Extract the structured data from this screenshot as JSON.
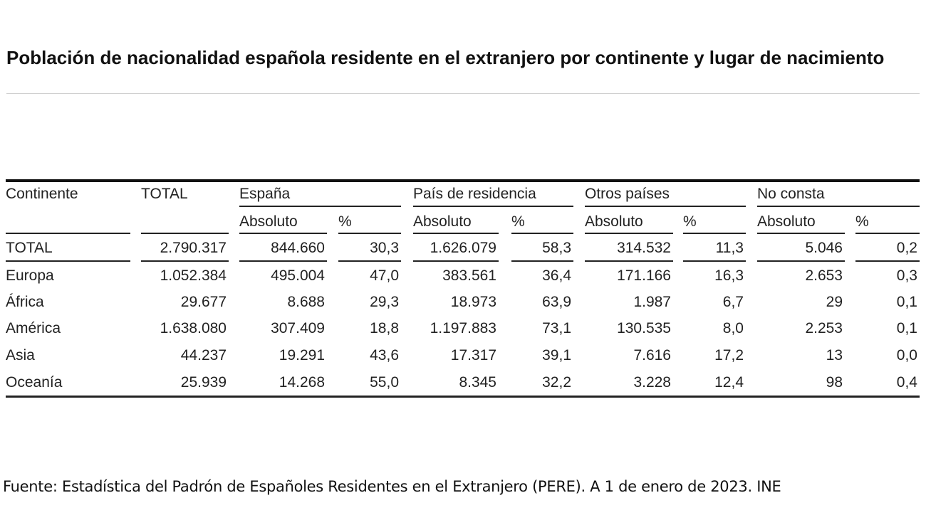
{
  "title": "Población de nacionalidad española residente en el extranjero por continente y lugar de nacimiento",
  "table": {
    "header_row1": [
      "Continente",
      "TOTAL",
      "España",
      "País de residencia",
      "Otros países",
      "No consta"
    ],
    "header_row2": [
      "Absoluto",
      "%",
      "Absoluto",
      "%",
      "Absoluto",
      "%",
      "Absoluto",
      "%"
    ],
    "rows": [
      [
        "TOTAL",
        "2.790.317",
        "844.660",
        "30,3",
        "1.626.079",
        "58,3",
        "314.532",
        "11,3",
        "5.046",
        "0,2"
      ],
      [
        "Europa",
        "1.052.384",
        "495.004",
        "47,0",
        "383.561",
        "36,4",
        "171.166",
        "16,3",
        "2.653",
        "0,3"
      ],
      [
        "África",
        "29.677",
        "8.688",
        "29,3",
        "18.973",
        "63,9",
        "1.987",
        "6,7",
        "29",
        "0,1"
      ],
      [
        "América",
        "1.638.080",
        "307.409",
        "18,8",
        "1.197.883",
        "73,1",
        "130.535",
        "8,0",
        "2.253",
        "0,1"
      ],
      [
        "Asia",
        "44.237",
        "19.291",
        "43,6",
        "17.317",
        "39,1",
        "7.616",
        "17,2",
        "13",
        "0,0"
      ],
      [
        "Oceanía",
        "25.939",
        "14.268",
        "55,0",
        "8.345",
        "32,2",
        "3.228",
        "12,4",
        "98",
        "0,4"
      ]
    ]
  },
  "footer": "Fuente: Estadística del Padrón de Españoles Residentes en el Extranjero (PERE). A 1 de enero de 2023. INE"
}
